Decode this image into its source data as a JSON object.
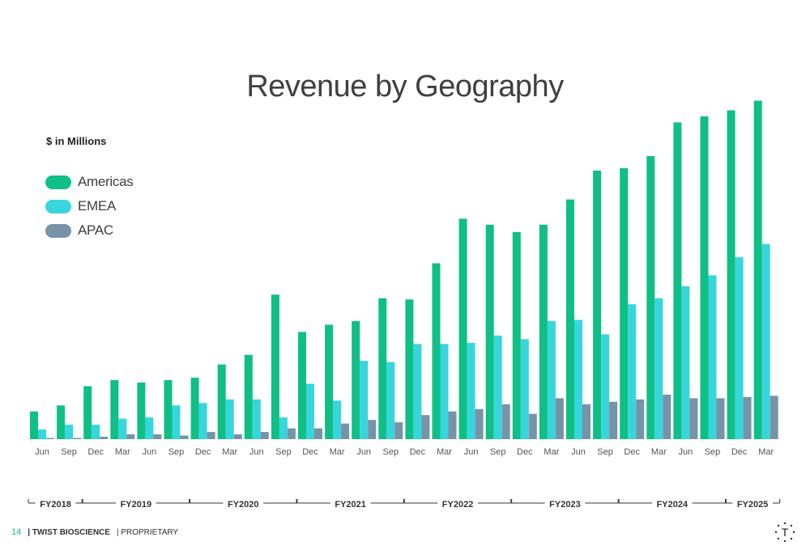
{
  "page": {
    "title": "Revenue by Geography",
    "unit_label": "$ in Millions",
    "page_number": "14",
    "company": "| TWIST BIOSCIENCE",
    "classification": "| PROPRIETARY",
    "logo_letter": "T"
  },
  "colors": {
    "americas": "#0fbf85",
    "emea": "#36d6dc",
    "apac": "#7893a8",
    "bracket": "#333333"
  },
  "chart_data": {
    "type": "bar",
    "title": "Revenue by Geography",
    "ylabel": "$ in Millions",
    "xlabel": "",
    "legend_position": "top-left",
    "grid": false,
    "ylim": [
      0,
      280
    ],
    "categories": [
      "Jun",
      "Sep",
      "Dec",
      "Mar",
      "Jun",
      "Sep",
      "Dec",
      "Mar",
      "Jun",
      "Sep",
      "Dec",
      "Mar",
      "Jun",
      "Sep",
      "Dec",
      "Mar",
      "Jun",
      "Sep",
      "Dec",
      "Mar",
      "Jun",
      "Sep",
      "Dec",
      "Mar",
      "Jun",
      "Sep",
      "Dec",
      "Mar"
    ],
    "series": [
      {
        "name": "Americas",
        "values": [
          23,
          28,
          44,
          49,
          47,
          49,
          51,
          62,
          70,
          120,
          89,
          95,
          98,
          117,
          116,
          146,
          183,
          178,
          172,
          178,
          199,
          223,
          225,
          235,
          263,
          268,
          273,
          281
        ]
      },
      {
        "name": "EMEA",
        "values": [
          8,
          12,
          12,
          17,
          18,
          28,
          30,
          33,
          33,
          18,
          46,
          32,
          65,
          64,
          79,
          79,
          80,
          86,
          83,
          98,
          99,
          87,
          112,
          117,
          127,
          136,
          151,
          162
        ]
      },
      {
        "name": "APAC",
        "values": [
          1,
          1,
          2,
          4,
          4,
          3,
          6,
          4,
          6,
          9,
          9,
          13,
          16,
          14,
          20,
          23,
          25,
          29,
          21,
          34,
          29,
          31,
          33,
          37,
          34,
          34,
          35,
          36
        ]
      }
    ],
    "fiscal_years": [
      {
        "label": "FY2018",
        "start": 0,
        "end": 1
      },
      {
        "label": "FY2019",
        "start": 2,
        "end": 5
      },
      {
        "label": "FY2020",
        "start": 6,
        "end": 9
      },
      {
        "label": "FY2021",
        "start": 10,
        "end": 13
      },
      {
        "label": "FY2022",
        "start": 14,
        "end": 17
      },
      {
        "label": "FY2023",
        "start": 18,
        "end": 21
      },
      {
        "label": "FY2024",
        "start": 22,
        "end": 25
      },
      {
        "label": "FY2025",
        "start": 26,
        "end": 27
      }
    ]
  }
}
